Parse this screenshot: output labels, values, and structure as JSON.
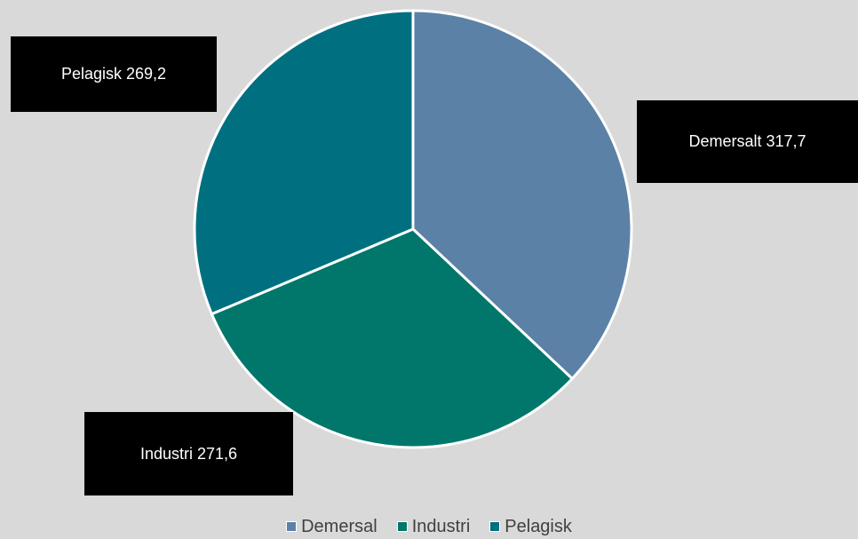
{
  "chart_data": {
    "type": "pie",
    "title": "",
    "slices": [
      {
        "category": "Demersal",
        "value": 317.7,
        "label": "Demersalt 317,7",
        "color": "#5b81a6"
      },
      {
        "category": "Industri",
        "value": 271.6,
        "label": "Industri 271,6",
        "color": "#00776a"
      },
      {
        "category": "Pelagisk",
        "value": 269.2,
        "label": "Pelagisk 269,2",
        "color": "#007080"
      }
    ],
    "start_angle": "12 o'clock",
    "direction": "clockwise",
    "legend_position": "bottom",
    "legend": [
      "Demersal",
      "Industri",
      "Pelagisk"
    ]
  },
  "colors": {
    "background": "#d9d9d9",
    "slice_border": "#ffffff",
    "label_box": "#000000",
    "label_text": "#ffffff",
    "legend_text": "#404040"
  }
}
